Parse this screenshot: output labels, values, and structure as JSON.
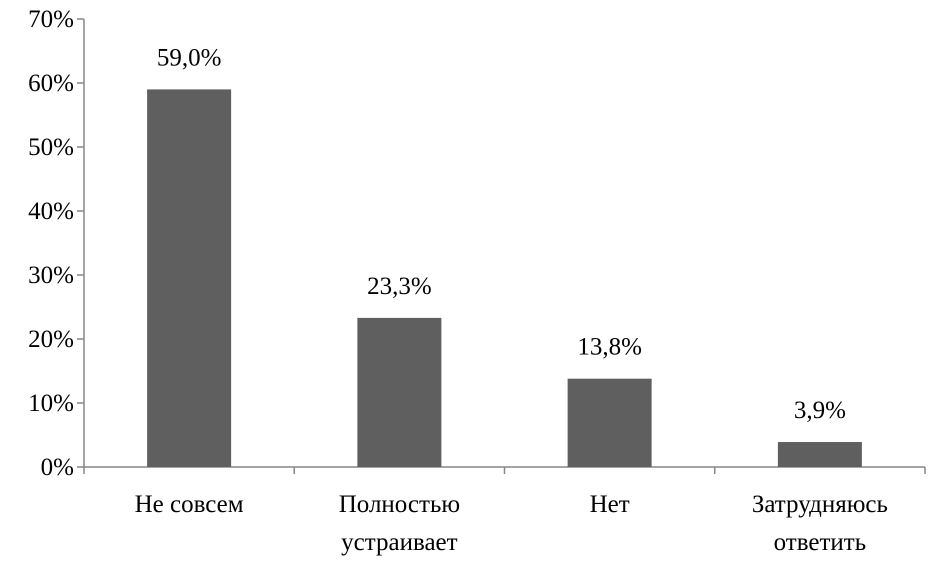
{
  "chart_data": {
    "type": "bar",
    "title": "",
    "xlabel": "",
    "ylabel": "",
    "categories": [
      [
        "Не совсем"
      ],
      [
        "Полностью",
        "устраивает"
      ],
      [
        "Нет"
      ],
      [
        "Затрудняюсь",
        "ответить"
      ]
    ],
    "values": [
      59.0,
      23.3,
      13.8,
      3.9
    ],
    "data_labels": [
      "59,0%",
      "23,3%",
      "13,8%",
      "3,9%"
    ],
    "ylim": [
      0,
      70
    ],
    "y_ticks": [
      0,
      10,
      20,
      30,
      40,
      50,
      60,
      70
    ],
    "y_tick_labels": [
      "0%",
      "10%",
      "20%",
      "30%",
      "40%",
      "50%",
      "60%",
      "70%"
    ],
    "grid": false,
    "legend": "none",
    "bar_color": "#5f5f5f",
    "axis_color": "#878787"
  }
}
